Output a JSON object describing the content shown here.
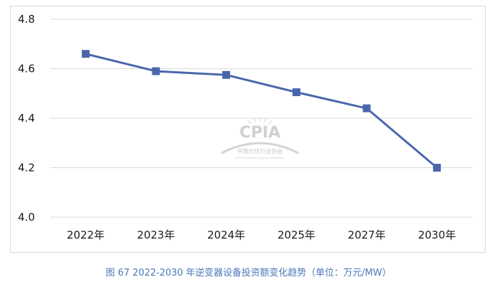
{
  "caption": "图 67    2022-2030 年逆变器设备投资额变化趋势（单位：万元/MW）",
  "watermark": {
    "logo_text": "CPIA",
    "org_name_cn": "中国光伏行业协会",
    "org_name_en": "China Photovoltaic Industry Association"
  },
  "chart_data": {
    "type": "line",
    "title": "",
    "xlabel": "",
    "ylabel": "",
    "categories": [
      "2022年",
      "2023年",
      "2024年",
      "2025年",
      "2027年",
      "2030年"
    ],
    "series": [
      {
        "values": [
          4.66,
          4.59,
          4.575,
          4.505,
          4.44,
          4.2
        ],
        "color": "#4a67ad",
        "marker": "square"
      }
    ],
    "ylim": [
      4.0,
      4.8
    ],
    "yticks": [
      4.0,
      4.2,
      4.4,
      4.6,
      4.8
    ],
    "ytick_labels": [
      "4.0",
      "4.2",
      "4.4",
      "4.6",
      "4.8"
    ],
    "grid": true,
    "legend": "none"
  }
}
